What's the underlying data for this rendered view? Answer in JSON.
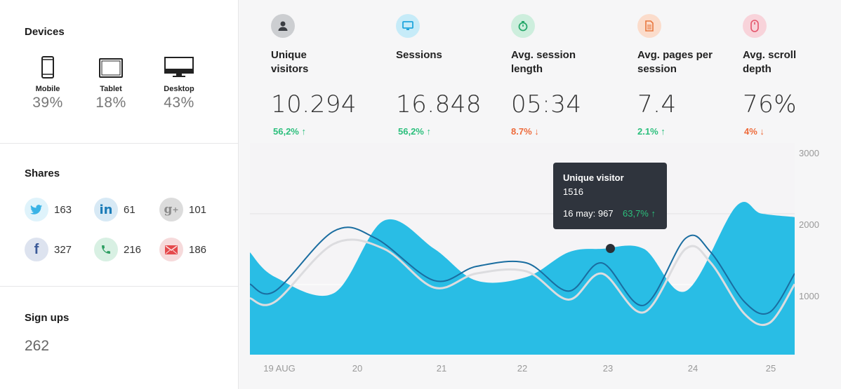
{
  "devices": {
    "title": "Devices",
    "items": [
      {
        "label": "Mobile",
        "pct": "39%"
      },
      {
        "label": "Tablet",
        "pct": "18%"
      },
      {
        "label": "Desktop",
        "pct": "43%"
      }
    ]
  },
  "shares": {
    "title": "Shares",
    "items": [
      {
        "network": "twitter",
        "count": "163"
      },
      {
        "network": "linkedin",
        "count": "61"
      },
      {
        "network": "google-plus",
        "count": "101"
      },
      {
        "network": "facebook",
        "count": "327"
      },
      {
        "network": "phone",
        "count": "216"
      },
      {
        "network": "email",
        "count": "186"
      }
    ]
  },
  "signups": {
    "title": "Sign ups",
    "value": "262"
  },
  "kpis": [
    {
      "title": "Unique visitors",
      "value": "10.294",
      "change": "56,2% ↑",
      "trend": "up",
      "icon": "user-icon",
      "color": "#9aa0a6"
    },
    {
      "title": "Sessions",
      "value": "16.848",
      "change": "56,2% ↑",
      "trend": "up",
      "icon": "monitor-icon",
      "color": "#35b6e6"
    },
    {
      "title": "Avg. session length",
      "value": "05:34",
      "change": "8.7% ↓",
      "trend": "down",
      "icon": "stopwatch-icon",
      "color": "#3cc08a"
    },
    {
      "title": "Avg. pages per session",
      "value": "7.4",
      "change": "2.1% ↑",
      "trend": "up",
      "icon": "document-icon",
      "color": "#f08850"
    },
    {
      "title": "Avg. scroll depth",
      "value": "76%",
      "change": "4% ↓",
      "trend": "down",
      "icon": "mouse-icon",
      "color": "#ee6a7e"
    }
  ],
  "tooltip": {
    "title": "Unique visitor",
    "value": "1516",
    "date_value": "16 may: 967",
    "change": "63,7% ↑"
  },
  "colors": {
    "area": "#29bde5",
    "line": "#1a6da0",
    "up": "#2bbf7c",
    "down": "#ee6b3b"
  },
  "chart_data": {
    "type": "area",
    "x": [
      "19 AUG",
      "20",
      "21",
      "22",
      "23",
      "24",
      "25"
    ],
    "xlim": [
      19,
      25.5
    ],
    "ylim": [
      0,
      3000
    ],
    "y_ticks": [
      "3000",
      "2000",
      "1000"
    ],
    "series": [
      {
        "area": true,
        "x": [
          19,
          19.3,
          20,
          20.6,
          21.2,
          21.7,
          22.3,
          22.8,
          23.2,
          23.7,
          24.2,
          24.8,
          25.1,
          25.5
        ],
        "y": [
          1450,
          1100,
          870,
          1900,
          1500,
          1050,
          1100,
          1450,
          1500,
          1500,
          900,
          2100,
          2000,
          1950
        ]
      },
      {
        "area": false,
        "x": [
          19,
          19.3,
          20,
          20.5,
          21.2,
          21.7,
          22.3,
          22.8,
          23.2,
          23.7,
          24.2,
          24.5,
          24.9,
          25.2,
          25.5
        ],
        "y": [
          1000,
          900,
          1750,
          1650,
          1050,
          1250,
          1300,
          900,
          1300,
          700,
          1650,
          1450,
          750,
          600,
          1150
        ]
      },
      {
        "area": false,
        "x": [
          19,
          19.3,
          20,
          20.6,
          21.2,
          21.7,
          22.3,
          22.8,
          23.2,
          23.7,
          24.2,
          24.5,
          24.9,
          25.2,
          25.5
        ],
        "y": [
          800,
          750,
          1570,
          1500,
          950,
          1150,
          1180,
          780,
          1150,
          600,
          1500,
          1300,
          580,
          450,
          1000
        ]
      }
    ]
  }
}
